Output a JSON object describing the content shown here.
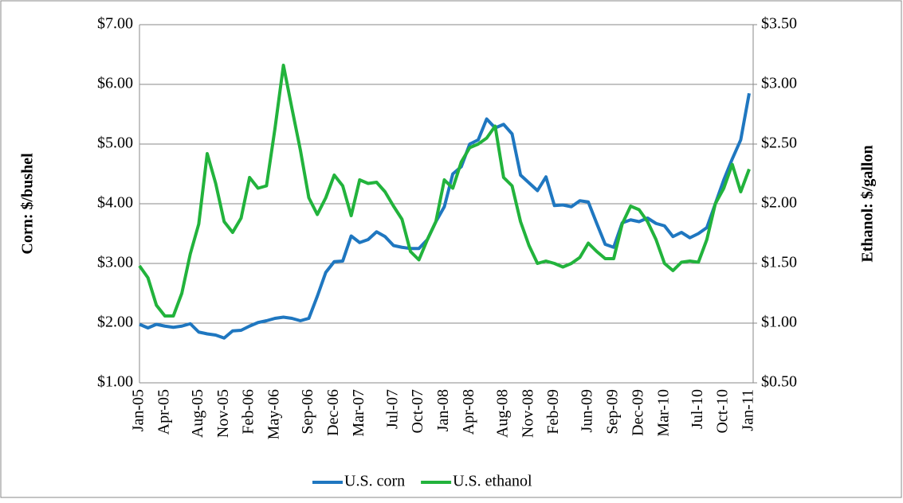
{
  "chart_data": {
    "type": "line",
    "categories": [
      "Jan-05",
      null,
      null,
      "Apr-05",
      null,
      null,
      null,
      "Aug-05",
      null,
      null,
      "Nov-05",
      null,
      null,
      "Feb-06",
      null,
      null,
      "May-06",
      null,
      null,
      null,
      "Sep-06",
      null,
      null,
      "Dec-06",
      null,
      null,
      "Mar-07",
      null,
      null,
      null,
      "Jul-07",
      null,
      null,
      "Oct-07",
      null,
      null,
      "Jan-08",
      null,
      null,
      "Apr-08",
      null,
      null,
      null,
      "Aug-08",
      null,
      null,
      "Nov-08",
      null,
      null,
      "Feb-09",
      null,
      null,
      null,
      "Jun-09",
      null,
      null,
      "Sep-09",
      null,
      null,
      "Dec-09",
      null,
      null,
      "Mar-10",
      null,
      null,
      null,
      "Jul-10",
      null,
      null,
      "Oct-10",
      null,
      null,
      "Jan-11"
    ],
    "series": [
      {
        "name": "U.S. corn",
        "color": "#1f77c0",
        "axis": "y",
        "values": [
          1.98,
          1.92,
          1.98,
          1.95,
          1.93,
          1.95,
          1.99,
          1.85,
          1.82,
          1.8,
          1.75,
          1.87,
          1.88,
          1.95,
          2.01,
          2.04,
          2.08,
          2.1,
          2.08,
          2.04,
          2.08,
          2.45,
          2.85,
          3.03,
          3.04,
          3.46,
          3.35,
          3.4,
          3.53,
          3.45,
          3.3,
          3.27,
          3.25,
          3.25,
          3.4,
          3.7,
          3.95,
          4.5,
          4.62,
          5.0,
          5.07,
          5.42,
          5.27,
          5.33,
          5.17,
          4.48,
          4.35,
          4.22,
          4.45,
          3.97,
          3.98,
          3.95,
          4.05,
          4.03,
          3.67,
          3.32,
          3.27,
          3.68,
          3.73,
          3.7,
          3.76,
          3.67,
          3.63,
          3.45,
          3.52,
          3.43,
          3.5,
          3.6,
          4.0,
          4.4,
          4.75,
          5.07,
          5.85
        ]
      },
      {
        "name": "U.S. ethanol",
        "color": "#22b33c",
        "axis": "y2",
        "values": [
          1.48,
          1.38,
          1.15,
          1.06,
          1.06,
          1.25,
          1.58,
          1.83,
          2.42,
          2.17,
          1.85,
          1.76,
          1.88,
          2.22,
          2.13,
          2.15,
          2.63,
          3.16,
          2.8,
          2.45,
          2.05,
          1.91,
          2.05,
          2.24,
          2.15,
          1.9,
          2.2,
          2.17,
          2.18,
          2.1,
          1.98,
          1.87,
          1.6,
          1.53,
          1.7,
          1.85,
          2.2,
          2.13,
          2.35,
          2.47,
          2.5,
          2.55,
          2.65,
          2.22,
          2.15,
          1.85,
          1.65,
          1.5,
          1.52,
          1.5,
          1.47,
          1.5,
          1.55,
          1.67,
          1.6,
          1.54,
          1.54,
          1.83,
          1.98,
          1.95,
          1.85,
          1.7,
          1.5,
          1.44,
          1.51,
          1.52,
          1.51,
          1.7,
          2.0,
          2.13,
          2.33,
          2.1,
          2.29
        ]
      }
    ],
    "y_label": "Corn:  $/bushel",
    "y2_label": "Ethanol:  $/gallon",
    "ylim": [
      1,
      7
    ],
    "yticks": [
      {
        "value": 1,
        "label": "$1.00"
      },
      {
        "value": 2,
        "label": "$2.00"
      },
      {
        "value": 3,
        "label": "$3.00"
      },
      {
        "value": 4,
        "label": "$4.00"
      },
      {
        "value": 5,
        "label": "$5.00"
      },
      {
        "value": 6,
        "label": "$6.00"
      },
      {
        "value": 7,
        "label": "$7.00"
      }
    ],
    "y2lim": [
      0.5,
      3.5
    ],
    "y2ticks": [
      {
        "value": 0.5,
        "label": "$0.50"
      },
      {
        "value": 1,
        "label": "$1.00"
      },
      {
        "value": 1.5,
        "label": "$1.50"
      },
      {
        "value": 2,
        "label": "$2.00"
      },
      {
        "value": 2.5,
        "label": "$2.50"
      },
      {
        "value": 3,
        "label": "$3.00"
      },
      {
        "value": 3.5,
        "label": "$3.50"
      }
    ],
    "grid": true,
    "legend": "bottom"
  }
}
